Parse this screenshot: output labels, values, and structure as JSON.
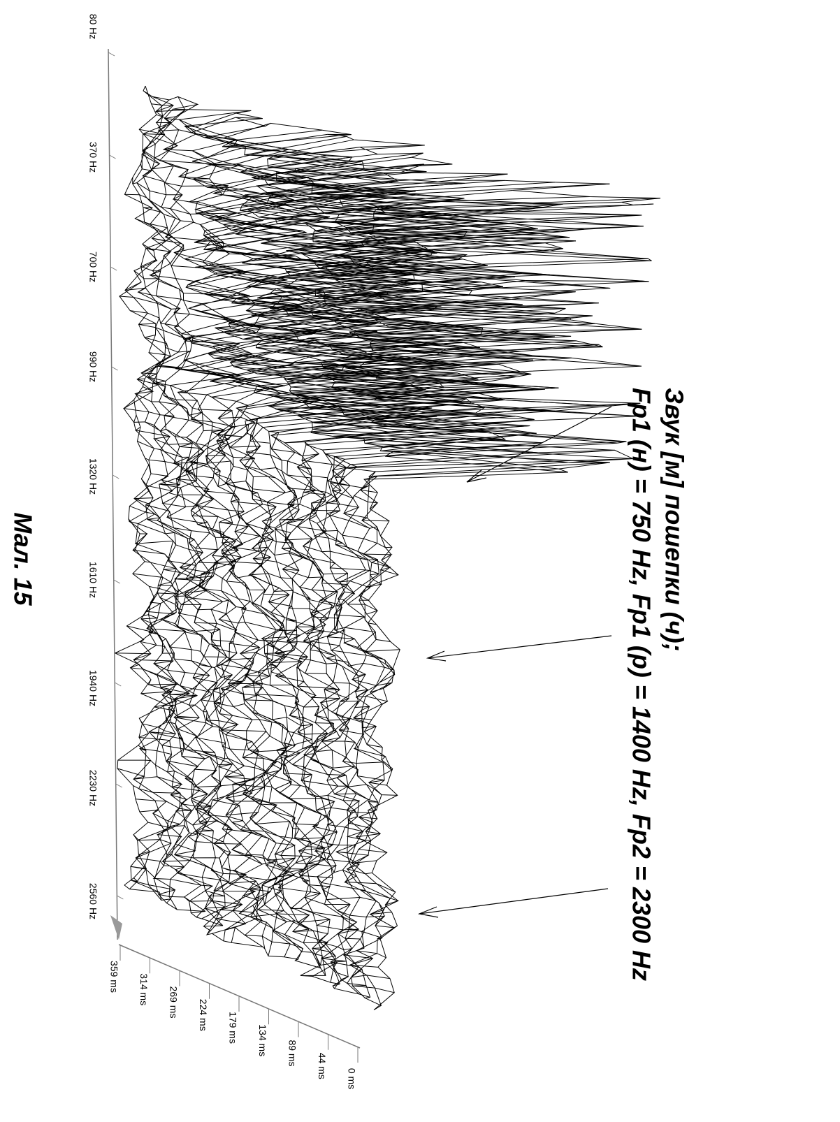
{
  "frequency_axis": {
    "ticks": [
      "80 Hz",
      "370 Hz",
      "700 Hz",
      "990 Hz",
      "1320 Hz",
      "1610 Hz",
      "1940 Hz",
      "2230 Hz",
      "2560 Hz"
    ]
  },
  "time_axis": {
    "ticks": [
      "359 ms",
      "314 ms",
      "269 ms",
      "224 ms",
      "179 ms",
      "134 ms",
      "89 ms",
      "44 ms",
      "0 ms"
    ]
  },
  "annotation": {
    "lines": [
      "Звук [м] пошепки (ч);",
      "Fp1 (н) = 750 Hz, Fp1 (р) = 1400 Hz, Fp2 = 2300 Hz"
    ]
  },
  "caption": "Мал. 15"
}
